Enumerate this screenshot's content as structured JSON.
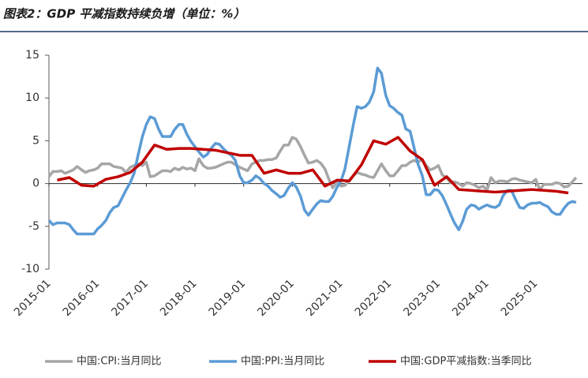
{
  "chart_data": {
    "type": "line",
    "title": "图表2：GDP 平减指数持续负增（单位：%）",
    "xlim": [
      2015,
      2025.83
    ],
    "xticks": [
      {
        "value": 2015,
        "label": "2015-01"
      },
      {
        "value": 2016,
        "label": "2016-01"
      },
      {
        "value": 2017,
        "label": "2017-01"
      },
      {
        "value": 2018,
        "label": "2018-01"
      },
      {
        "value": 2019,
        "label": "2019-01"
      },
      {
        "value": 2020,
        "label": "2020-01"
      },
      {
        "value": 2021,
        "label": "2021-01"
      },
      {
        "value": 2022,
        "label": "2022-01"
      },
      {
        "value": 2023,
        "label": "2023-01"
      },
      {
        "value": 2024,
        "label": "2024-01"
      },
      {
        "value": 2025,
        "label": "2025-01"
      }
    ],
    "ylim": [
      -10,
      15
    ],
    "yticks": [
      -10,
      -5,
      0,
      5,
      10,
      15
    ],
    "grid": false,
    "legend": "bottom",
    "x": [
      2015.0,
      2015.08,
      2015.17,
      2015.25,
      2015.33,
      2015.42,
      2015.5,
      2015.58,
      2015.67,
      2015.75,
      2015.83,
      2015.92,
      2016.0,
      2016.08,
      2016.17,
      2016.25,
      2016.33,
      2016.42,
      2016.5,
      2016.58,
      2016.67,
      2016.75,
      2016.83,
      2016.92,
      2017.0,
      2017.08,
      2017.17,
      2017.25,
      2017.33,
      2017.42,
      2017.5,
      2017.58,
      2017.67,
      2017.75,
      2017.83,
      2017.92,
      2018.0,
      2018.08,
      2018.17,
      2018.25,
      2018.33,
      2018.42,
      2018.5,
      2018.58,
      2018.67,
      2018.75,
      2018.83,
      2018.92,
      2019.0,
      2019.08,
      2019.17,
      2019.25,
      2019.33,
      2019.42,
      2019.5,
      2019.58,
      2019.67,
      2019.75,
      2019.83,
      2019.92,
      2020.0,
      2020.08,
      2020.17,
      2020.25,
      2020.33,
      2020.42,
      2020.5,
      2020.58,
      2020.67,
      2020.75,
      2020.83,
      2020.92,
      2021.0,
      2021.08,
      2021.17,
      2021.25,
      2021.33,
      2021.42,
      2021.5,
      2021.58,
      2021.67,
      2021.75,
      2021.83,
      2021.92,
      2022.0,
      2022.08,
      2022.17,
      2022.25,
      2022.33,
      2022.42,
      2022.5,
      2022.58,
      2022.67,
      2022.75,
      2022.83,
      2022.92,
      2023.0,
      2023.08,
      2023.17,
      2023.25,
      2023.33,
      2023.42,
      2023.5,
      2023.58,
      2023.67,
      2023.75,
      2023.83,
      2023.92,
      2024.0,
      2024.08,
      2024.17,
      2024.25,
      2024.33,
      2024.42,
      2024.5,
      2024.58,
      2024.67,
      2024.75,
      2024.83,
      2024.92,
      2025.0,
      2025.08,
      2025.17,
      2025.25,
      2025.33,
      2025.42,
      2025.5,
      2025.58,
      2025.67,
      2025.75,
      2025.83
    ],
    "series": [
      {
        "name": "中国:CPI:当月同比",
        "color": "#a6a6a6",
        "width": 3.5,
        "values": [
          0.8,
          1.4,
          1.4,
          1.5,
          1.2,
          1.4,
          1.6,
          2.0,
          1.6,
          1.3,
          1.5,
          1.6,
          1.8,
          2.3,
          2.3,
          2.3,
          2.0,
          1.9,
          1.8,
          1.3,
          1.9,
          2.1,
          2.3,
          2.1,
          2.5,
          0.8,
          0.9,
          1.2,
          1.5,
          1.5,
          1.4,
          1.8,
          1.6,
          1.9,
          1.7,
          1.8,
          1.5,
          2.9,
          2.1,
          1.8,
          1.8,
          1.9,
          2.1,
          2.3,
          2.5,
          2.5,
          2.2,
          1.9,
          1.7,
          1.5,
          2.3,
          2.5,
          2.7,
          2.7,
          2.8,
          2.8,
          3.0,
          3.8,
          4.5,
          4.5,
          5.4,
          5.2,
          4.3,
          3.3,
          2.4,
          2.5,
          2.7,
          2.4,
          1.7,
          0.5,
          -0.5,
          0.2,
          -0.3,
          -0.2,
          0.4,
          0.9,
          1.3,
          1.1,
          1.0,
          0.8,
          0.7,
          1.5,
          2.3,
          1.5,
          0.9,
          0.9,
          1.5,
          2.1,
          2.1,
          2.5,
          2.7,
          2.5,
          2.8,
          2.1,
          1.6,
          1.8,
          2.1,
          1.0,
          0.7,
          0.1,
          0.2,
          0.0,
          -0.3,
          0.1,
          0.0,
          -0.2,
          -0.5,
          -0.3,
          -0.8,
          0.7,
          0.1,
          0.3,
          0.3,
          0.2,
          0.5,
          0.6,
          0.4,
          0.3,
          0.2,
          0.1,
          0.5,
          -0.7,
          -0.1,
          -0.1,
          -0.1,
          0.1,
          0.0,
          -0.4,
          -0.3,
          0.2,
          0.7
        ]
      },
      {
        "name": "中国:PPI:当月同比",
        "color": "#5b9bd5",
        "width": 3.5,
        "values": [
          -4.3,
          -4.8,
          -4.6,
          -4.6,
          -4.6,
          -4.8,
          -5.4,
          -5.9,
          -5.9,
          -5.9,
          -5.9,
          -5.9,
          -5.3,
          -4.9,
          -4.3,
          -3.4,
          -2.8,
          -2.6,
          -1.7,
          -0.8,
          0.1,
          1.2,
          3.3,
          5.5,
          6.9,
          7.8,
          7.6,
          6.4,
          5.5,
          5.5,
          5.5,
          6.3,
          6.9,
          6.9,
          5.8,
          4.9,
          4.3,
          3.7,
          3.1,
          3.4,
          4.1,
          4.7,
          4.6,
          4.1,
          3.6,
          3.3,
          2.7,
          0.9,
          0.1,
          0.1,
          0.4,
          0.9,
          0.6,
          0.0,
          -0.3,
          -0.8,
          -1.2,
          -1.6,
          -1.4,
          -0.5,
          0.1,
          -0.4,
          -1.5,
          -3.1,
          -3.7,
          -3.0,
          -2.4,
          -2.0,
          -2.1,
          -2.1,
          -1.5,
          -0.4,
          0.3,
          1.7,
          4.4,
          6.8,
          9.0,
          8.8,
          9.0,
          9.5,
          10.7,
          13.5,
          12.9,
          10.3,
          9.1,
          8.8,
          8.3,
          8.0,
          6.4,
          6.1,
          4.2,
          2.3,
          0.9,
          -1.3,
          -1.3,
          -0.7,
          -0.8,
          -1.4,
          -2.5,
          -3.6,
          -4.6,
          -5.4,
          -4.4,
          -3.0,
          -2.5,
          -2.6,
          -3.0,
          -2.7,
          -2.5,
          -2.7,
          -2.8,
          -2.5,
          -1.4,
          -0.8,
          -0.8,
          -1.8,
          -2.8,
          -2.9,
          -2.5,
          -2.3,
          -2.3,
          -2.2,
          -2.5,
          -2.7,
          -3.3,
          -3.6,
          -3.6,
          -2.9,
          -2.3,
          -2.1,
          -2.2
        ]
      },
      {
        "name": "中国:GDP平减指数:当季同比",
        "color": "#c00000",
        "width": 3.5,
        "x": [
          2015.17,
          2015.42,
          2015.67,
          2015.92,
          2016.17,
          2016.42,
          2016.67,
          2016.92,
          2017.17,
          2017.42,
          2017.67,
          2017.92,
          2018.17,
          2018.42,
          2018.67,
          2018.92,
          2019.17,
          2019.42,
          2019.67,
          2019.92,
          2020.17,
          2020.42,
          2020.67,
          2020.92,
          2021.17,
          2021.42,
          2021.67,
          2021.92,
          2022.17,
          2022.42,
          2022.67,
          2022.92,
          2023.17,
          2023.42,
          2023.67,
          2023.92,
          2024.17,
          2024.42,
          2024.67,
          2024.92,
          2025.17,
          2025.42,
          2025.67
        ],
        "values": [
          0.4,
          0.7,
          -0.2,
          -0.3,
          0.5,
          0.8,
          1.3,
          2.5,
          4.5,
          4.0,
          4.1,
          4.1,
          4.0,
          3.9,
          3.6,
          3.3,
          3.3,
          1.2,
          1.6,
          1.2,
          1.2,
          1.6,
          -0.3,
          0.4,
          0.3,
          2.2,
          5.0,
          4.6,
          5.4,
          3.8,
          2.8,
          -0.2,
          0.8,
          -0.7,
          -0.8,
          -0.9,
          -1.0,
          -0.9,
          -0.8,
          -0.7,
          -0.8,
          -0.9,
          -1.1
        ]
      }
    ]
  }
}
